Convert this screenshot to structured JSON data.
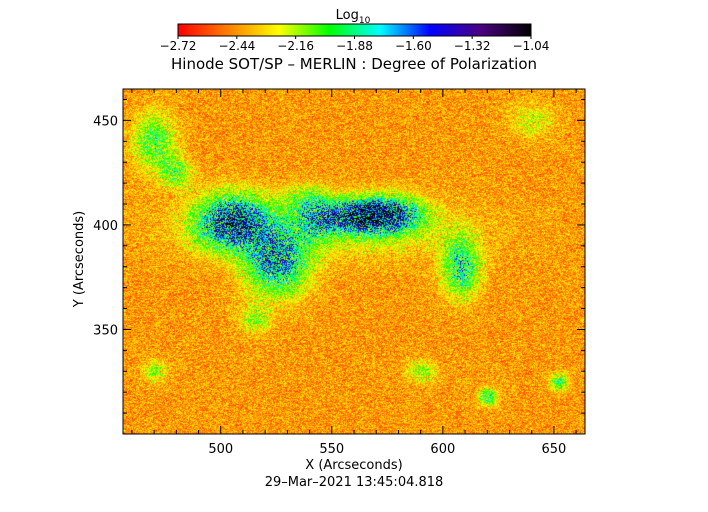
{
  "chart_data": {
    "type": "heatmap",
    "title": "Hinode SOT/SP – MERLIN : Degree of Polarization",
    "colorbar": {
      "label": "Log",
      "label_sub": "10",
      "range": [
        -2.72,
        -1.04
      ],
      "ticks": [
        "−2.72",
        "−2.44",
        "−2.16",
        "−1.88",
        "−1.60",
        "−1.32",
        "−1.04"
      ],
      "colormap": [
        "#ff0000",
        "#ff8000",
        "#ffff00",
        "#00ff00",
        "#00ffff",
        "#0000ff",
        "#4b0082",
        "#000000"
      ]
    },
    "xlabel": "X (Arcseconds)",
    "ylabel": "Y (Arcseconds)",
    "xlim": [
      456,
      664
    ],
    "ylim": [
      300,
      465
    ],
    "xticks": [
      500,
      550,
      600,
      650
    ],
    "yticks": [
      350,
      400,
      450
    ],
    "grid": false,
    "background_level": -2.55,
    "features": [
      {
        "x": 505,
        "y": 402,
        "sx": 11,
        "sy": 9,
        "amp": 1.2
      },
      {
        "x": 525,
        "y": 382,
        "sx": 10,
        "sy": 11,
        "amp": 1.0
      },
      {
        "x": 562,
        "y": 405,
        "sx": 8,
        "sy": 5,
        "amp": 1.1
      },
      {
        "x": 576,
        "y": 405,
        "sx": 10,
        "sy": 6,
        "amp": 1.2
      },
      {
        "x": 545,
        "y": 402,
        "sx": 7,
        "sy": 5,
        "amp": 0.7
      },
      {
        "x": 608,
        "y": 380,
        "sx": 6,
        "sy": 10,
        "amp": 0.8
      },
      {
        "x": 545,
        "y": 398,
        "sx": 45,
        "sy": 10,
        "amp": 0.35
      },
      {
        "x": 470,
        "y": 440,
        "sx": 7,
        "sy": 10,
        "amp": 0.6
      },
      {
        "x": 480,
        "y": 425,
        "sx": 5,
        "sy": 5,
        "amp": 0.5
      },
      {
        "x": 540,
        "y": 412,
        "sx": 8,
        "sy": 5,
        "amp": 0.5
      },
      {
        "x": 620,
        "y": 318,
        "sx": 3,
        "sy": 3,
        "amp": 0.7
      },
      {
        "x": 590,
        "y": 330,
        "sx": 5,
        "sy": 4,
        "amp": 0.4
      },
      {
        "x": 652,
        "y": 325,
        "sx": 3,
        "sy": 3,
        "amp": 0.6
      },
      {
        "x": 515,
        "y": 355,
        "sx": 5,
        "sy": 5,
        "amp": 0.4
      },
      {
        "x": 470,
        "y": 330,
        "sx": 4,
        "sy": 4,
        "amp": 0.4
      },
      {
        "x": 640,
        "y": 450,
        "sx": 8,
        "sy": 6,
        "amp": 0.3
      }
    ]
  },
  "footer": {
    "timestamp": "29–Mar–2021 13:45:04.818"
  }
}
